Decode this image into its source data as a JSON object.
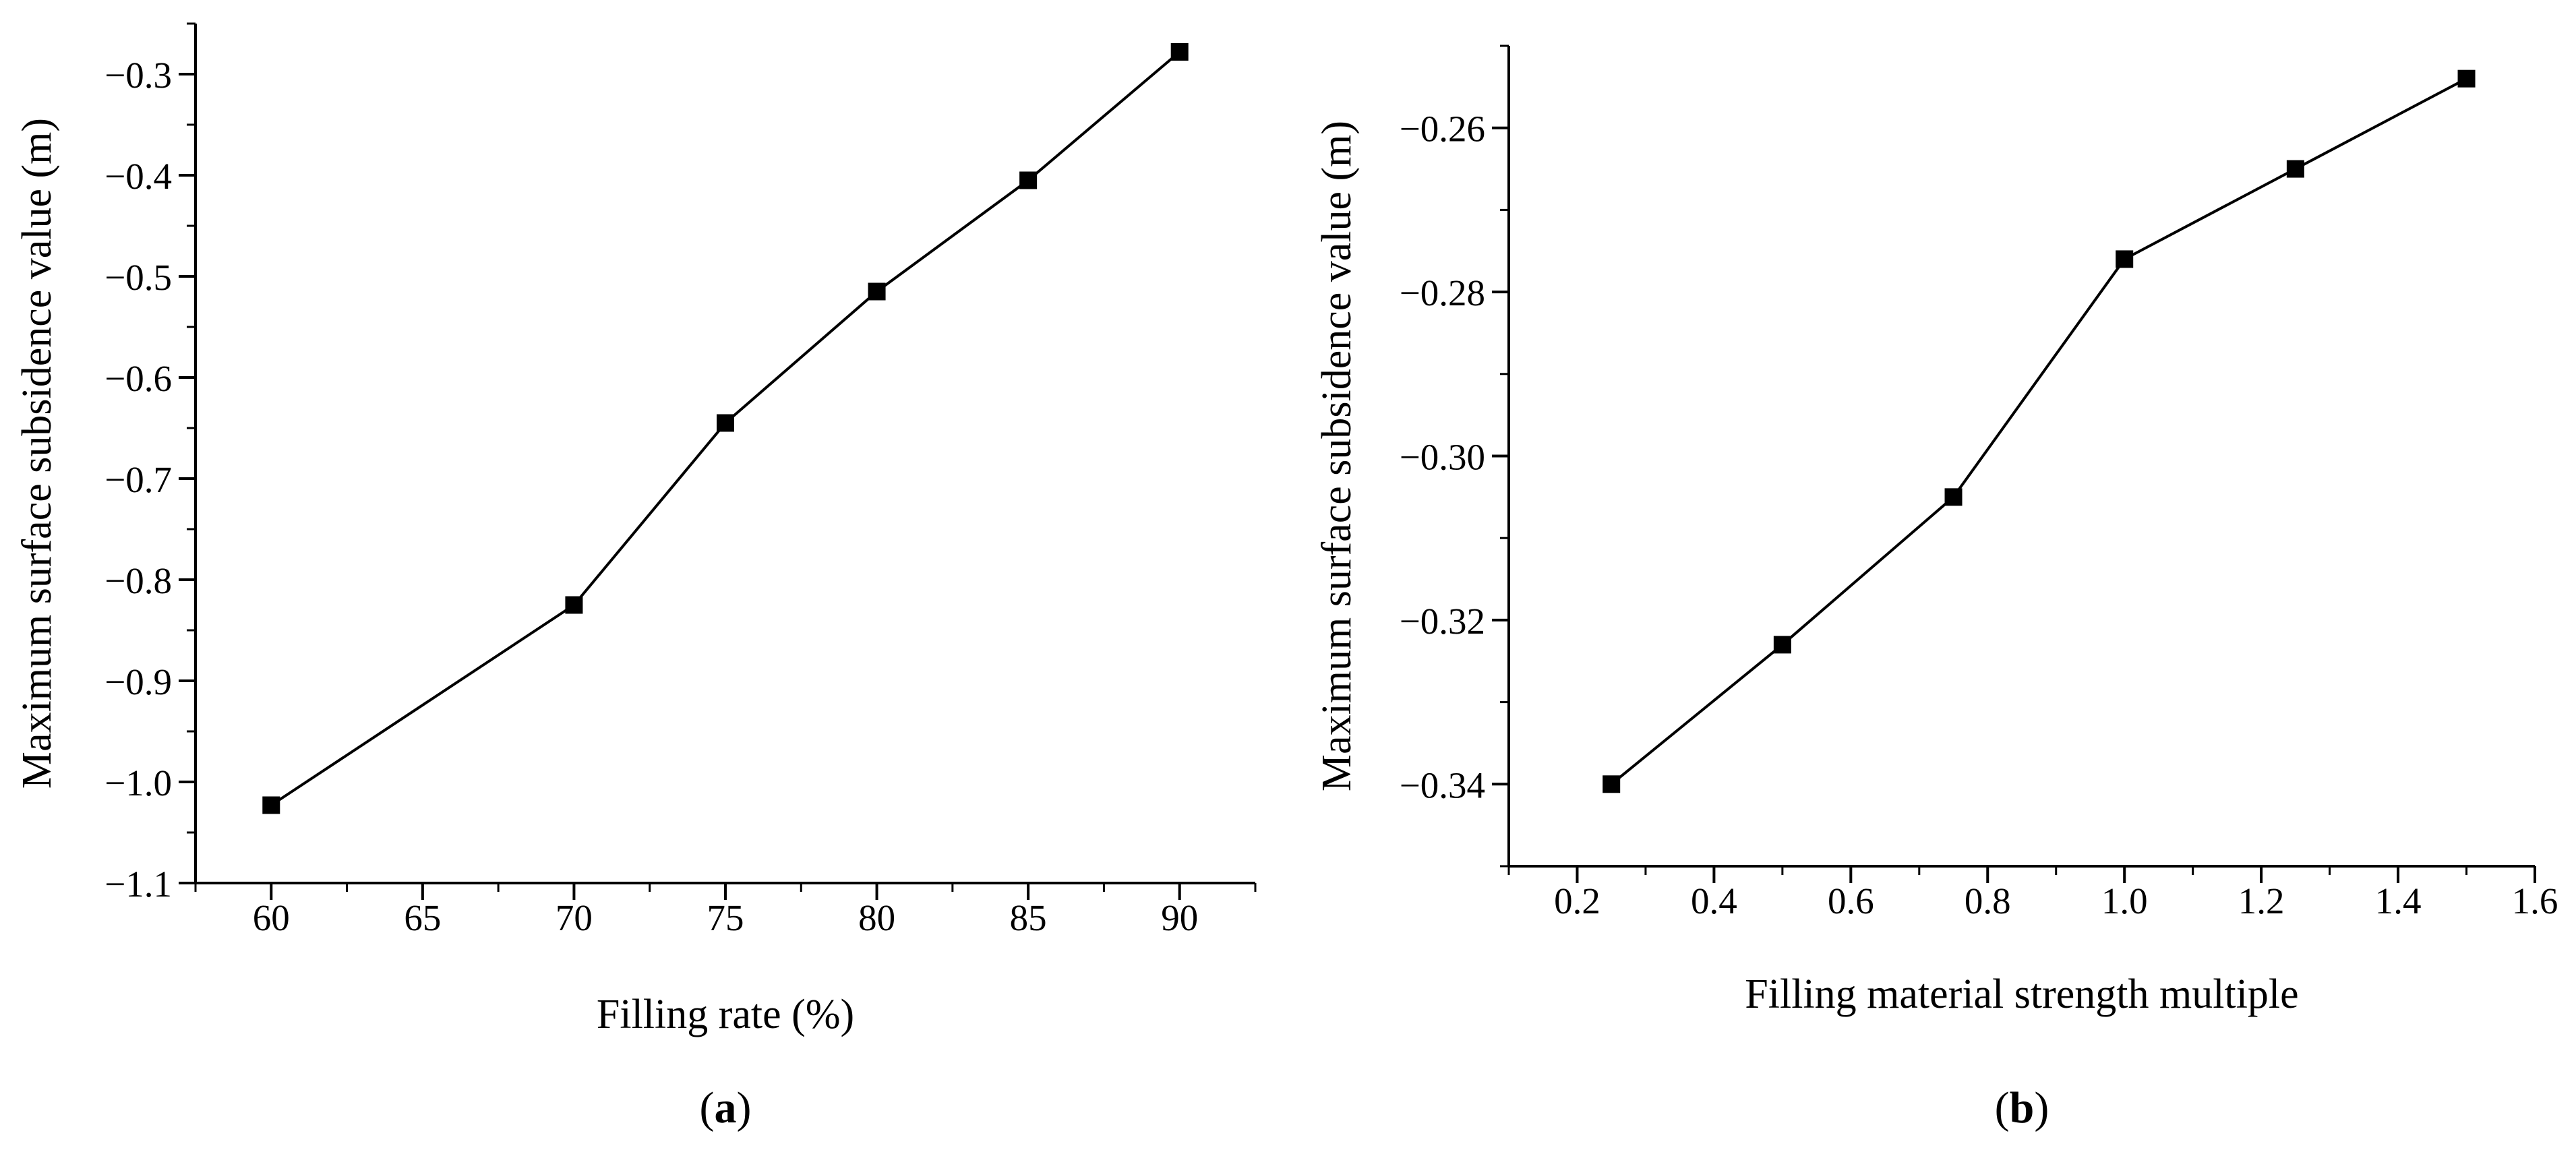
{
  "chart_data": [
    {
      "type": "line",
      "panel_label": "a",
      "title": "",
      "xlabel": "Filling rate (%)",
      "ylabel": "Maximum surface subsidence value (m)",
      "xlim": [
        57.5,
        92.5
      ],
      "ylim": [
        -1.1,
        -0.25
      ],
      "xticks": [
        60,
        65,
        70,
        75,
        80,
        85,
        90
      ],
      "xtick_labels": [
        "60",
        "65",
        "70",
        "75",
        "80",
        "85",
        "90"
      ],
      "yticks": [
        -1.1,
        -1.0,
        -0.9,
        -0.8,
        -0.7,
        -0.6,
        -0.5,
        -0.4,
        -0.3
      ],
      "ytick_labels": [
        "−1.1",
        "−1.0",
        "−0.9",
        "−0.8",
        "−0.7",
        "−0.6",
        "−0.5",
        "−0.4",
        "−0.3"
      ],
      "series": [
        {
          "name": "Maximum surface subsidence",
          "marker": "square",
          "x": [
            60,
            70,
            75,
            80,
            85,
            90
          ],
          "y": [
            -1.023,
            -0.825,
            -0.645,
            -0.515,
            -0.405,
            -0.278
          ]
        }
      ],
      "grid": false
    },
    {
      "type": "line",
      "panel_label": "b",
      "title": "",
      "xlabel": "Filling material strength multiple",
      "ylabel": "Maximum surface subsidence value (m)",
      "xlim": [
        0.1,
        1.6
      ],
      "ylim": [
        -0.35,
        -0.25
      ],
      "xticks": [
        0.2,
        0.4,
        0.6,
        0.8,
        1.0,
        1.2,
        1.4,
        1.6
      ],
      "xtick_labels": [
        "0.2",
        "0.4",
        "0.6",
        "0.8",
        "1.0",
        "1.2",
        "1.4",
        "1.6"
      ],
      "yticks": [
        -0.34,
        -0.32,
        -0.3,
        -0.28,
        -0.26
      ],
      "ytick_labels": [
        "−0.34",
        "−0.32",
        "−0.30",
        "−0.28",
        "−0.26"
      ],
      "series": [
        {
          "name": "Maximum surface subsidence",
          "marker": "square",
          "x": [
            0.25,
            0.5,
            0.75,
            1.0,
            1.25,
            1.5
          ],
          "y": [
            -0.34,
            -0.323,
            -0.305,
            -0.276,
            -0.265,
            -0.254
          ]
        }
      ],
      "grid": false
    }
  ]
}
